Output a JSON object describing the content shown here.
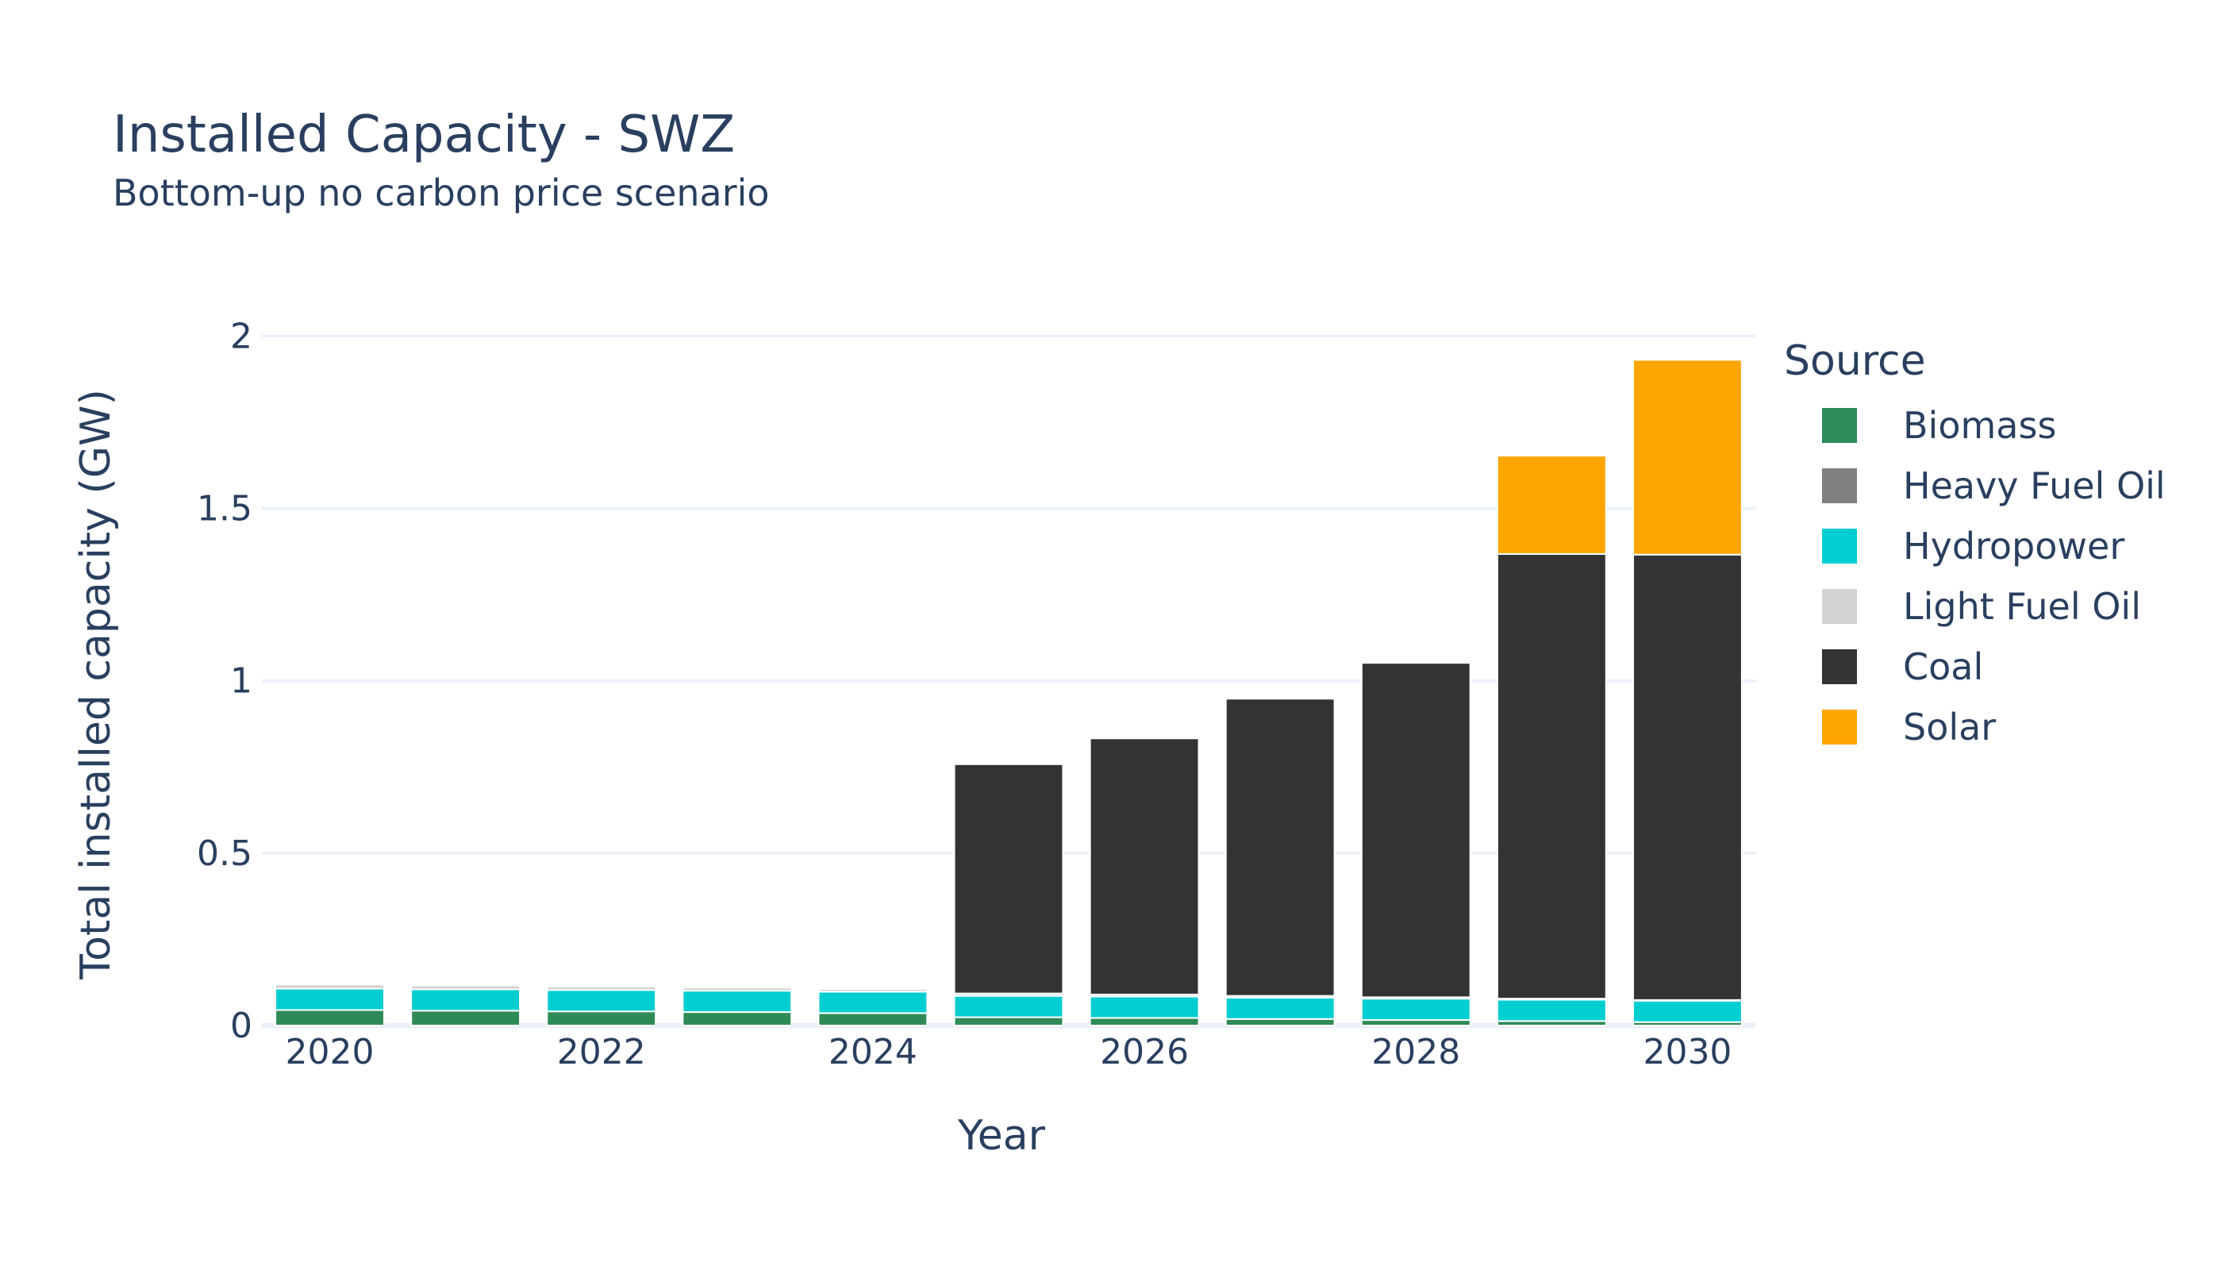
{
  "chart_data": {
    "type": "bar",
    "stacked": true,
    "title": "Installed Capacity - SWZ",
    "subtitle": "Bottom-up no carbon price scenario",
    "xlabel": "Year",
    "ylabel": "Total installed capacity (GW)",
    "ylim": [
      0,
      2.1
    ],
    "yticks": [
      0,
      0.5,
      1,
      1.5,
      2
    ],
    "ytick_labels": [
      "0",
      "0.5",
      "1",
      "1.5",
      "2"
    ],
    "xticks": [
      2020,
      2022,
      2024,
      2026,
      2028,
      2030
    ],
    "xtick_labels": [
      "2020",
      "2022",
      "2024",
      "2026",
      "2028",
      "2030"
    ],
    "categories": [
      2020,
      2021,
      2022,
      2023,
      2024,
      2025,
      2026,
      2027,
      2028,
      2029,
      2030
    ],
    "grid": true,
    "legend": {
      "title": "Source",
      "position": "right"
    },
    "series": [
      {
        "name": "Biomass",
        "color": "#2e8b57",
        "values": [
          0.045,
          0.043,
          0.041,
          0.039,
          0.036,
          0.024,
          0.022,
          0.019,
          0.016,
          0.013,
          0.01
        ]
      },
      {
        "name": "Heavy Fuel Oil",
        "color": "#808080",
        "values": [
          0,
          0,
          0,
          0,
          0,
          0,
          0,
          0,
          0,
          0,
          0
        ]
      },
      {
        "name": "Hydropower",
        "color": "#00ced1",
        "values": [
          0.062,
          0.062,
          0.062,
          0.062,
          0.062,
          0.062,
          0.062,
          0.062,
          0.062,
          0.062,
          0.062
        ]
      },
      {
        "name": "Light Fuel Oil",
        "color": "#d3d3d3",
        "values": [
          0.012,
          0.011,
          0.01,
          0.009,
          0.008,
          0.007,
          0.006,
          0.005,
          0.004,
          0.003,
          0.002
        ]
      },
      {
        "name": "Coal",
        "color": "#333333",
        "values": [
          0,
          0,
          0,
          0,
          0,
          0.665,
          0.743,
          0.862,
          0.97,
          1.29,
          1.292
        ]
      },
      {
        "name": "Solar",
        "color": "#ffa500",
        "values": [
          0,
          0,
          0,
          0,
          0,
          0,
          0,
          0,
          0,
          0.285,
          0.565
        ]
      }
    ]
  }
}
